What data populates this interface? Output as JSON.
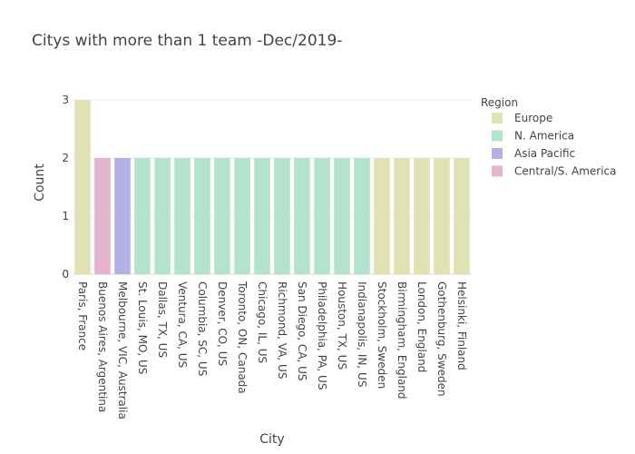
{
  "chart_data": {
    "type": "bar",
    "title": "Citys with more than 1 team -Dec/2019-",
    "xlabel": "City",
    "ylabel": "Count",
    "ylim": [
      0,
      3
    ],
    "y_ticks": [
      0,
      1,
      2,
      3
    ],
    "grid": true,
    "legend": {
      "title": "Region",
      "placement": "right",
      "entries": [
        {
          "name": "Europe",
          "color": "#dfe3b3"
        },
        {
          "name": "N. America",
          "color": "#b3e2cd"
        },
        {
          "name": "Asia Pacific",
          "color": "#b4b0e3"
        },
        {
          "name": "Central/S. America",
          "color": "#e6b3cc"
        }
      ]
    },
    "categories": [
      "Paris, France",
      "Buenos Aires, Argentina",
      "Melbourne, VIC, Australia",
      "St. Louis, MO, US",
      "Dallas, TX, US",
      "Ventura, CA, US",
      "Columbia, SC, US",
      "Denver, CO, US",
      "Toronto, ON, Canada",
      "Chicago, IL, US",
      "Richmond, VA, US",
      "San Diego, CA, US",
      "Philadelphia, PA, US",
      "Houston, TX, US",
      "Indianapolis, IN, US",
      "Stockholm, Sweden",
      "Birmingham, England",
      "London, England",
      "Gothenburg, Sweden",
      "Helsinki, Finland"
    ],
    "values": [
      3,
      2,
      2,
      2,
      2,
      2,
      2,
      2,
      2,
      2,
      2,
      2,
      2,
      2,
      2,
      2,
      2,
      2,
      2,
      2
    ],
    "regions": [
      "Europe",
      "Central/S. America",
      "Asia Pacific",
      "N. America",
      "N. America",
      "N. America",
      "N. America",
      "N. America",
      "N. America",
      "N. America",
      "N. America",
      "N. America",
      "N. America",
      "N. America",
      "N. America",
      "Europe",
      "Europe",
      "Europe",
      "Europe",
      "Europe"
    ]
  }
}
